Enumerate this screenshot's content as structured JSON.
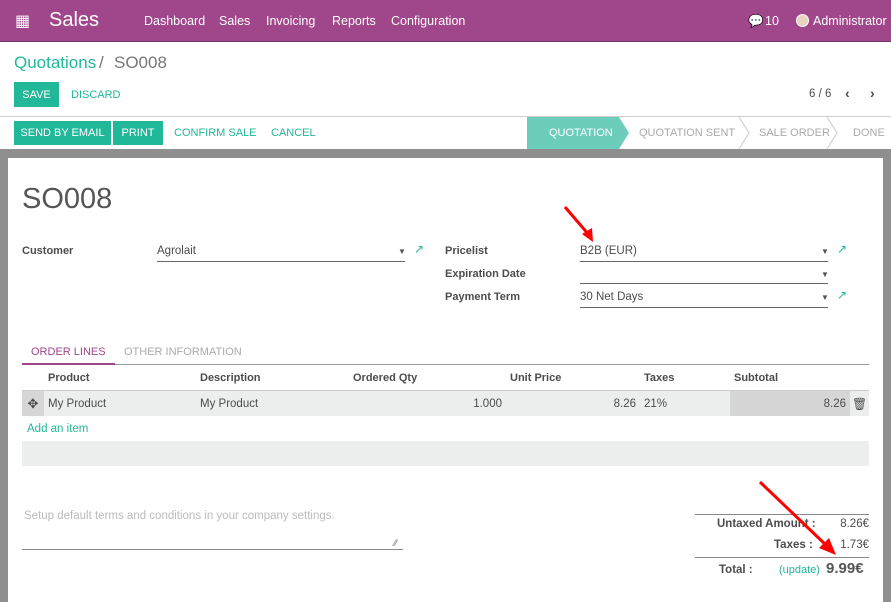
{
  "topbar": {
    "app": "Sales",
    "menu": [
      "Dashboard",
      "Sales",
      "Invoicing",
      "Reports",
      "Configuration"
    ],
    "messages": "10",
    "user": "Administrator",
    "color": "#a0468a"
  },
  "breadcrumb": {
    "parent": "Quotations",
    "separator": "/",
    "current": "SO008"
  },
  "actions": {
    "save": "SAVE",
    "discard": "DISCARD",
    "pager": "6 / 6"
  },
  "statusbar": {
    "buttons": [
      "SEND BY EMAIL",
      "PRINT",
      "CONFIRM SALE",
      "CANCEL"
    ],
    "stages": [
      "QUOTATION",
      "QUOTATION SENT",
      "SALE ORDER",
      "DONE"
    ],
    "active_stage": "QUOTATION"
  },
  "form": {
    "title": "SO008",
    "customer_label": "Customer",
    "customer": "Agrolait",
    "pricelist_label": "Pricelist",
    "pricelist": "B2B (EUR)",
    "expiration_label": "Expiration Date",
    "expiration": "",
    "payment_term_label": "Payment Term",
    "payment_term": "30 Net Days"
  },
  "tabs": [
    "ORDER LINES",
    "OTHER INFORMATION"
  ],
  "table": {
    "headers": [
      "Product",
      "Description",
      "Ordered Qty",
      "Unit Price",
      "Taxes",
      "Subtotal"
    ],
    "rows": [
      [
        "My Product",
        "My Product",
        "1.000",
        "8.26",
        "21%",
        "8.26"
      ]
    ],
    "add_item": "Add an item"
  },
  "notes_placeholder": "Setup default terms and conditions in your company settings.",
  "totals": {
    "untaxed_label": "Untaxed Amount :",
    "untaxed": "8.26€",
    "taxes_label": "Taxes :",
    "taxes": "1.73€",
    "total_label": "Total :",
    "update": "(update)",
    "total": "9.99€"
  }
}
